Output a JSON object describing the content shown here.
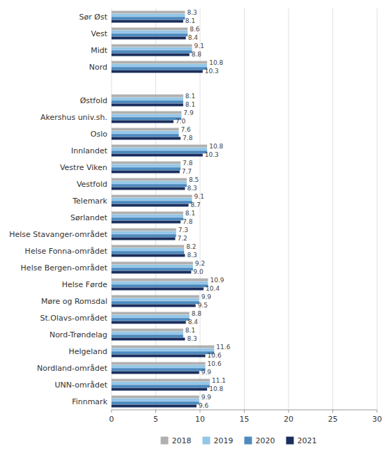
{
  "chart_data": {
    "type": "bar",
    "orientation": "horizontal",
    "categories": [
      "Sør Øst",
      "Vest",
      "Midt",
      "Nord",
      null,
      "Østfold",
      "Akershus univ.sh.",
      "Oslo",
      "Innlandet",
      "Vestre Viken",
      "Vestfold",
      "Telemark",
      "Sørlandet",
      "Helse Stavanger-området",
      "Helse Fonna-området",
      "Helse Bergen-området",
      "Helse Førde",
      "Møre og Romsdal",
      "St.Olavs-området",
      "Nord-Trøndelag",
      "Helgeland",
      "Nordland-området",
      "UNN-området",
      "Finnmark"
    ],
    "series": [
      {
        "name": "2018",
        "color": "#b0b0b0",
        "values": [
          8.3,
          8.6,
          9.1,
          10.8,
          null,
          8.1,
          7.9,
          7.6,
          10.8,
          7.8,
          8.5,
          9.1,
          8.1,
          7.3,
          8.2,
          9.2,
          10.9,
          9.9,
          8.8,
          8.1,
          11.6,
          10.6,
          11.1,
          9.9
        ],
        "value_labels": [
          "8.3",
          "8.6",
          "9.1",
          "10.8",
          null,
          "8.1",
          "7.9",
          "7.6",
          "10.8",
          "7.8",
          "8.5",
          "9.1",
          "8.1",
          "7.3",
          "8.2",
          "9.2",
          "10.9",
          "9.9",
          "8.8",
          "8.1",
          "11.6",
          "10.6",
          "11.1",
          "9.9"
        ]
      },
      {
        "name": "2019",
        "color": "#93c6e8",
        "values": [
          8.3,
          8.6,
          9.1,
          10.8,
          null,
          8.1,
          7.9,
          7.6,
          10.8,
          7.8,
          8.5,
          9.1,
          8.1,
          7.3,
          8.2,
          9.2,
          10.9,
          9.9,
          8.8,
          8.1,
          11.6,
          10.6,
          11.1,
          9.9
        ]
      },
      {
        "name": "2020",
        "color": "#4d8bbf",
        "values": [
          8.3,
          8.6,
          9.1,
          10.8,
          null,
          8.1,
          7.9,
          7.6,
          10.8,
          7.8,
          8.5,
          9.1,
          8.1,
          7.3,
          8.2,
          9.2,
          10.9,
          9.9,
          8.8,
          8.1,
          11.6,
          10.6,
          11.1,
          9.9
        ]
      },
      {
        "name": "2021",
        "color": "#1a2f5e",
        "values": [
          8.1,
          8.4,
          8.8,
          10.3,
          null,
          8.1,
          7.0,
          7.8,
          10.3,
          7.7,
          8.3,
          8.7,
          7.8,
          7.2,
          8.3,
          9.0,
          10.4,
          9.5,
          8.4,
          8.3,
          10.6,
          9.9,
          10.8,
          9.6
        ],
        "value_labels": [
          "8.1",
          "8.4",
          "8.8",
          "10.3",
          null,
          "8.1",
          "7.0",
          "7.8",
          "10.3",
          "7.7",
          "8.3",
          "8.7",
          "7.8",
          "7.2",
          "8.3",
          "9.0",
          "10.4",
          "9.5",
          "8.4",
          "8.3",
          "10.6",
          "9.9",
          "10.8",
          "9.6"
        ]
      }
    ],
    "xlim": [
      0,
      30
    ],
    "xticks": [
      0,
      5,
      10,
      15,
      20,
      25,
      30
    ],
    "grid": true,
    "data_labels": true,
    "legend": "bottom"
  }
}
